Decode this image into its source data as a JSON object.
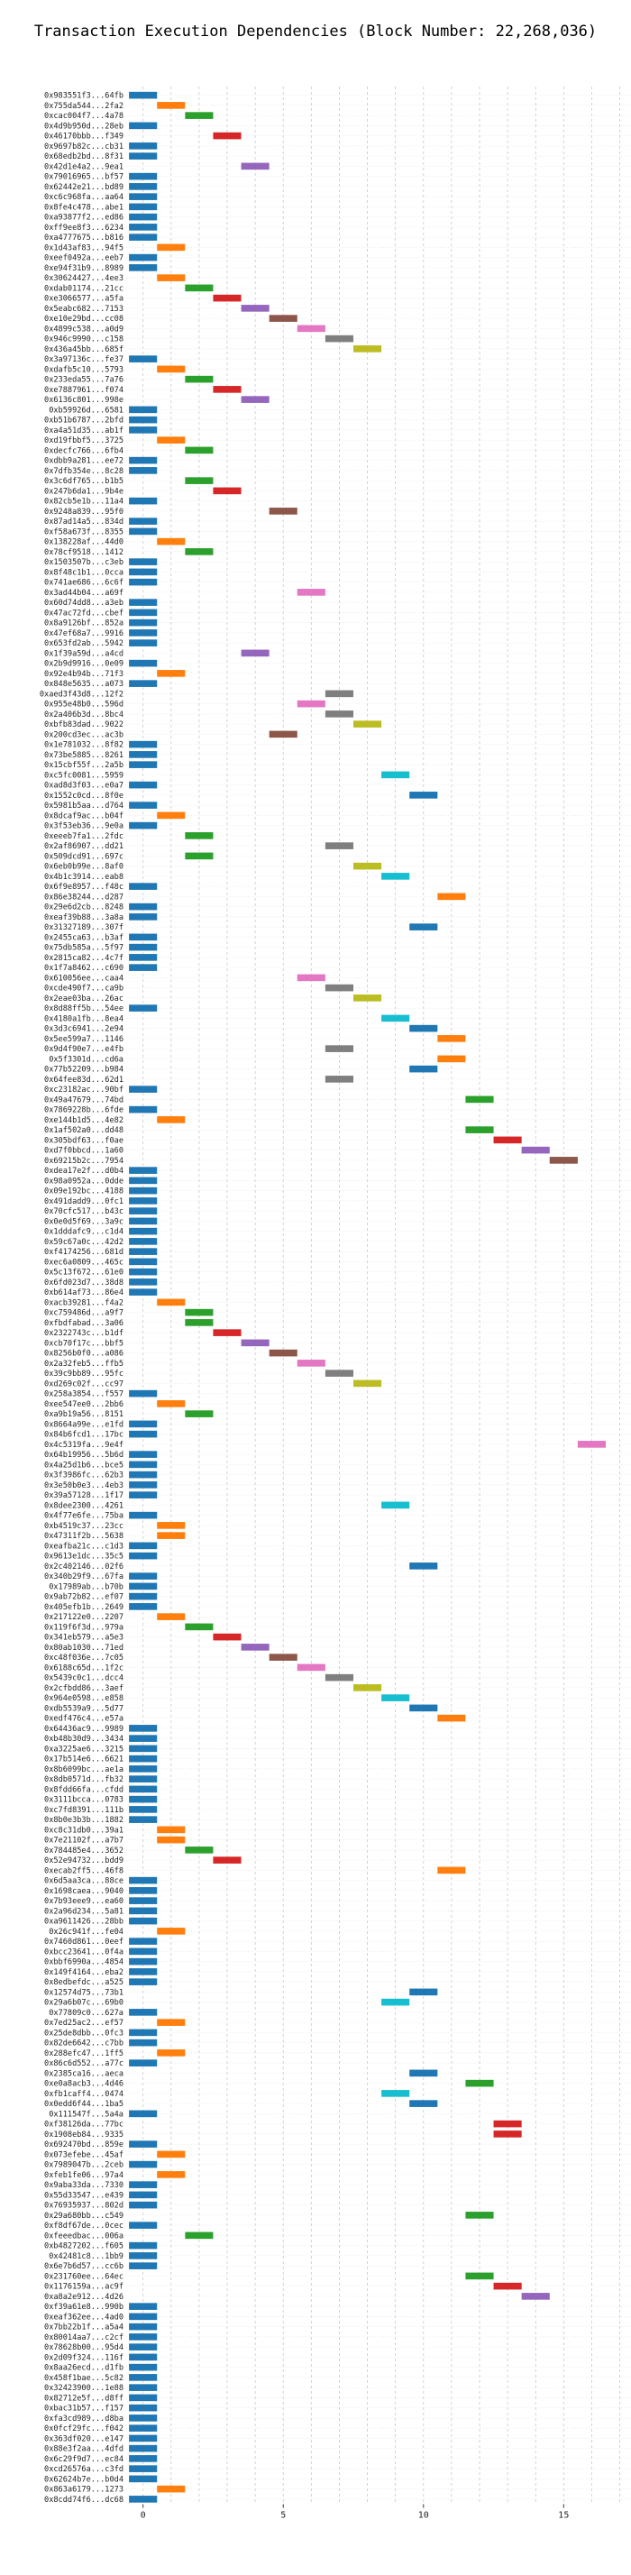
{
  "chart_data": {
    "type": "bar",
    "orientation": "horizontal-gantt",
    "title": "Transaction Execution Dependencies (Block Number: 22,268,036)",
    "xlabel": "",
    "ylabel": "",
    "xlim": [
      -0.6,
      17.4
    ],
    "xticks": [
      0,
      5,
      10,
      15
    ],
    "grid": true,
    "colors": [
      "#1f77b4",
      "#ff7f0e",
      "#2ca02c",
      "#d62728",
      "#9467bd",
      "#8c564b",
      "#e377c2",
      "#7f7f7f",
      "#bcbd22",
      "#17becf"
    ],
    "transactions": [
      {
        "label": "0x983551f3...64fb",
        "start": 0
      },
      {
        "label": "0x755da544...2fa2",
        "start": 1
      },
      {
        "label": "0xcac004f7...4a78",
        "start": 2
      },
      {
        "label": "0x4d9b950d...28eb",
        "start": 0
      },
      {
        "label": "0x46170bbb...f349",
        "start": 3
      },
      {
        "label": "0x9697b82c...cb31",
        "start": 0
      },
      {
        "label": "0x68edb2bd...8f31",
        "start": 0
      },
      {
        "label": "0x42d1e4a2...9ea1",
        "start": 4
      },
      {
        "label": "0x79016965...bf57",
        "start": 0
      },
      {
        "label": "0x62442e21...bd89",
        "start": 0
      },
      {
        "label": "0xc6c968fa...aa64",
        "start": 0
      },
      {
        "label": "0x8fe4c478...abe1",
        "start": 0
      },
      {
        "label": "0xa93877f2...ed86",
        "start": 0
      },
      {
        "label": "0xff9ee8f3...6234",
        "start": 0
      },
      {
        "label": "0xa4777675...b816",
        "start": 0
      },
      {
        "label": "0x1d43af83...94f5",
        "start": 1
      },
      {
        "label": "0xeef0492a...eeb7",
        "start": 0
      },
      {
        "label": "0xe94f31b9...8989",
        "start": 0
      },
      {
        "label": "0x30624427...4ee3",
        "start": 1
      },
      {
        "label": "0xdab01174...21cc",
        "start": 2
      },
      {
        "label": "0xe3066577...a5fa",
        "start": 3
      },
      {
        "label": "0x5eabc682...7153",
        "start": 4
      },
      {
        "label": "0xe10e29bd...cc08",
        "start": 5
      },
      {
        "label": "0x4899c538...a0d9",
        "start": 6
      },
      {
        "label": "0x946c9990...c158",
        "start": 7
      },
      {
        "label": "0x436a45bb...685f",
        "start": 8
      },
      {
        "label": "0x3a97136c...fe37",
        "start": 0
      },
      {
        "label": "0xdafb5c10...5793",
        "start": 1
      },
      {
        "label": "0x233eda55...7a76",
        "start": 2
      },
      {
        "label": "0xe7887961...f074",
        "start": 3
      },
      {
        "label": "0x6136c801...998e",
        "start": 4
      },
      {
        "label": "0xb59926d...6581",
        "start": 0
      },
      {
        "label": "0xb51b6787...2bfd",
        "start": 0
      },
      {
        "label": "0xa4a51d35...ab1f",
        "start": 0
      },
      {
        "label": "0xd19fbbf5...3725",
        "start": 1
      },
      {
        "label": "0xdecfc766...6fb4",
        "start": 2
      },
      {
        "label": "0xdbb9a281...ee72",
        "start": 0
      },
      {
        "label": "0x7dfb354e...8c28",
        "start": 0
      },
      {
        "label": "0x3c6df765...b1b5",
        "start": 2
      },
      {
        "label": "0x247b6da1...9b4e",
        "start": 3
      },
      {
        "label": "0x82cb5e1b...11a4",
        "start": 0
      },
      {
        "label": "0x9248a839...95f0",
        "start": 5
      },
      {
        "label": "0x87ad14a5...834d",
        "start": 0
      },
      {
        "label": "0xf58a673f...8355",
        "start": 0
      },
      {
        "label": "0x138228af...44d0",
        "start": 1
      },
      {
        "label": "0x78cf9518...1412",
        "start": 2
      },
      {
        "label": "0x1503507b...c3eb",
        "start": 0
      },
      {
        "label": "0x8f48c1b1...0cca",
        "start": 0
      },
      {
        "label": "0x741ae686...6c6f",
        "start": 0
      },
      {
        "label": "0x3ad44b04...a69f",
        "start": 6
      },
      {
        "label": "0x60d74dd8...a3eb",
        "start": 0
      },
      {
        "label": "0x47ac72fd...cbef",
        "start": 0
      },
      {
        "label": "0x8a9126bf...852a",
        "start": 0
      },
      {
        "label": "0x47ef68a7...9916",
        "start": 0
      },
      {
        "label": "0x653fd2ab...5942",
        "start": 0
      },
      {
        "label": "0x1f39a59d...a4cd",
        "start": 4
      },
      {
        "label": "0x2b9d9916...0e09",
        "start": 0
      },
      {
        "label": "0x92e4b94b...71f3",
        "start": 1
      },
      {
        "label": "0x848e5635...a073",
        "start": 0
      },
      {
        "label": "0xaed3f43d8...12f2",
        "start": 7
      },
      {
        "label": "0x955e48b0...596d",
        "start": 6
      },
      {
        "label": "0x2a406b3d...8bc4",
        "start": 7
      },
      {
        "label": "0xbfb83dad...9022",
        "start": 8
      },
      {
        "label": "0x200cd3ec...ac3b",
        "start": 5
      },
      {
        "label": "0x1e781032...8f82",
        "start": 0
      },
      {
        "label": "0x73be5885...8261",
        "start": 0
      },
      {
        "label": "0x15cbf55f...2a5b",
        "start": 0
      },
      {
        "label": "0xc5fc0081...5959",
        "start": 9
      },
      {
        "label": "0xad8d3f03...e0a7",
        "start": 0
      },
      {
        "label": "0x1552c0cd...8f0e",
        "start": 10
      },
      {
        "label": "0x5981b5aa...d764",
        "start": 0
      },
      {
        "label": "0x8dcaf9ac...b04f",
        "start": 1
      },
      {
        "label": "0x3f53eb36...9e0a",
        "start": 0
      },
      {
        "label": "0xeeeb7fa1...2fdc",
        "start": 2
      },
      {
        "label": "0x2af86907...dd21",
        "start": 7
      },
      {
        "label": "0x509dcd91...697c",
        "start": 2
      },
      {
        "label": "0x6eb0b99e...8af0",
        "start": 8
      },
      {
        "label": "0x4b1c3914...eab8",
        "start": 9
      },
      {
        "label": "0x6f9e8957...f48c",
        "start": 0
      },
      {
        "label": "0x86e38244...d287",
        "start": 11
      },
      {
        "label": "0x29e6d2cb...8248",
        "start": 0
      },
      {
        "label": "0xeaf39b88...3a8a",
        "start": 0
      },
      {
        "label": "0x31327189...307f",
        "start": 10
      },
      {
        "label": "0x2455ca63...b3af",
        "start": 0
      },
      {
        "label": "0x75db585a...5f97",
        "start": 0
      },
      {
        "label": "0x2815ca82...4c7f",
        "start": 0
      },
      {
        "label": "0x1f7a8462...c690",
        "start": 0
      },
      {
        "label": "0x610056ee...caa4",
        "start": 6
      },
      {
        "label": "0xcde490f7...ca9b",
        "start": 7
      },
      {
        "label": "0x2eae03ba...26ac",
        "start": 8
      },
      {
        "label": "0x8d88ff5b...54ee",
        "start": 0
      },
      {
        "label": "0x4180a1fb...8ea4",
        "start": 9
      },
      {
        "label": "0x3d3c6941...2e94",
        "start": 10
      },
      {
        "label": "0x5ee599a7...1146",
        "start": 11
      },
      {
        "label": "0x9d4f90e7...e4fb",
        "start": 7
      },
      {
        "label": "0x5f3301d...cd6a",
        "start": 11
      },
      {
        "label": "0x77b52209...b984",
        "start": 10
      },
      {
        "label": "0x64fee83d...62d1",
        "start": 7
      },
      {
        "label": "0xc23182ac...90bf",
        "start": 0
      },
      {
        "label": "0x49a47679...74bd",
        "start": 12
      },
      {
        "label": "0x7869228b...6fde",
        "start": 0
      },
      {
        "label": "0xe144b1d5...4e82",
        "start": 1
      },
      {
        "label": "0x1af502a0...dd48",
        "start": 12
      },
      {
        "label": "0x305bdf63...f0ae",
        "start": 13
      },
      {
        "label": "0xd7f0bbcd...1a60",
        "start": 14
      },
      {
        "label": "0x69215b2c...7954",
        "start": 15
      },
      {
        "label": "0xdea17e2f...d0b4",
        "start": 0
      },
      {
        "label": "0x98a0952a...0dde",
        "start": 0
      },
      {
        "label": "0x09e192bc...4188",
        "start": 0
      },
      {
        "label": "0x491dadd9...0fc1",
        "start": 0
      },
      {
        "label": "0x70cfc517...b43c",
        "start": 0
      },
      {
        "label": "0x0e0d5f69...3a9c",
        "start": 0
      },
      {
        "label": "0x1dddafc9...c1d4",
        "start": 0
      },
      {
        "label": "0x59c67a0c...42d2",
        "start": 0
      },
      {
        "label": "0xf4174256...681d",
        "start": 0
      },
      {
        "label": "0xec6a0809...465c",
        "start": 0
      },
      {
        "label": "0x5c13f672...61e0",
        "start": 0
      },
      {
        "label": "0x6fd023d7...38d8",
        "start": 0
      },
      {
        "label": "0xb614af73...86e4",
        "start": 0
      },
      {
        "label": "0xacb39281...f4a2",
        "start": 1
      },
      {
        "label": "0xc759486d...a9f7",
        "start": 2
      },
      {
        "label": "0xfbdfabad...3a06",
        "start": 2
      },
      {
        "label": "0x2322743c...b1df",
        "start": 3
      },
      {
        "label": "0xcb70f17c...bbf5",
        "start": 4
      },
      {
        "label": "0x8256b0f0...a086",
        "start": 5
      },
      {
        "label": "0x2a32feb5...ffb5",
        "start": 6
      },
      {
        "label": "0x39c9bb89...95fc",
        "start": 7
      },
      {
        "label": "0xd269c02f...cc97",
        "start": 8
      },
      {
        "label": "0x258a3854...f557",
        "start": 0
      },
      {
        "label": "0xee547ee0...2bb6",
        "start": 1
      },
      {
        "label": "0xa9b19a56...8151",
        "start": 2
      },
      {
        "label": "0x8664a99e...e1fd",
        "start": 0
      },
      {
        "label": "0x84b6fcd1...17bc",
        "start": 0
      },
      {
        "label": "0x4c5319fa...9e4f",
        "start": 16
      },
      {
        "label": "0x64b19956...5b6d",
        "start": 0
      },
      {
        "label": "0x4a25d1b6...bce5",
        "start": 0
      },
      {
        "label": "0x3f3986fc...62b3",
        "start": 0
      },
      {
        "label": "0x3e50b0e3...4eb3",
        "start": 0
      },
      {
        "label": "0x39a57128...1f17",
        "start": 0
      },
      {
        "label": "0x8dee2300...4261",
        "start": 9
      },
      {
        "label": "0x4f77e6fe...75ba",
        "start": 0
      },
      {
        "label": "0xb4519c37...23cc",
        "start": 1
      },
      {
        "label": "0x47311f2b...5638",
        "start": 1
      },
      {
        "label": "0xeafba21c...c1d3",
        "start": 0
      },
      {
        "label": "0x9613e1dc...35c5",
        "start": 0
      },
      {
        "label": "0x2c402146...02f6",
        "start": 10
      },
      {
        "label": "0x340b29f9...67fa",
        "start": 0
      },
      {
        "label": "0x17989ab...b70b",
        "start": 0
      },
      {
        "label": "0x9ab72b82...ef07",
        "start": 0
      },
      {
        "label": "0x405efb1b...2649",
        "start": 0
      },
      {
        "label": "0x217122e0...2207",
        "start": 1
      },
      {
        "label": "0x119f6f3d...979a",
        "start": 2
      },
      {
        "label": "0x341eb579...a5e3",
        "start": 3
      },
      {
        "label": "0x80ab1030...71ed",
        "start": 4
      },
      {
        "label": "0xc48f036e...7c05",
        "start": 5
      },
      {
        "label": "0x6188c65d...1f2c",
        "start": 6
      },
      {
        "label": "0x5439c0c1...dcc4",
        "start": 7
      },
      {
        "label": "0x2cfbdd86...3aef",
        "start": 8
      },
      {
        "label": "0x964e0598...e858",
        "start": 9
      },
      {
        "label": "0xdb5539a9...5d77",
        "start": 10
      },
      {
        "label": "0xedf476c4...e57a",
        "start": 11
      },
      {
        "label": "0x64436ac9...9989",
        "start": 0
      },
      {
        "label": "0xb48b30d9...3434",
        "start": 0
      },
      {
        "label": "0xa3225ae6...3215",
        "start": 0
      },
      {
        "label": "0x17b514e6...6621",
        "start": 0
      },
      {
        "label": "0x8b6099bc...ae1a",
        "start": 0
      },
      {
        "label": "0x8db0571d...fb32",
        "start": 0
      },
      {
        "label": "0x8fdd66fa...cfdd",
        "start": 0
      },
      {
        "label": "0x3111bcca...0783",
        "start": 0
      },
      {
        "label": "0xc7fd8391...111b",
        "start": 0
      },
      {
        "label": "0x8b0e3b3b...1882",
        "start": 0
      },
      {
        "label": "0xc8c31db0...39a1",
        "start": 1
      },
      {
        "label": "0x7e21102f...a7b7",
        "start": 1
      },
      {
        "label": "0x784485e4...3652",
        "start": 2
      },
      {
        "label": "0x52e94732...bdd9",
        "start": 3
      },
      {
        "label": "0xecab2ff5...46f8",
        "start": 11
      },
      {
        "label": "0x6d5aa3ca...88ce",
        "start": 0
      },
      {
        "label": "0x1698caea...9040",
        "start": 0
      },
      {
        "label": "0x7b93eee9...ea60",
        "start": 0
      },
      {
        "label": "0x2a96d234...5a81",
        "start": 0
      },
      {
        "label": "0xa9611426...28bb",
        "start": 0
      },
      {
        "label": "0x26c941f...fe04",
        "start": 1
      },
      {
        "label": "0x7460d861...0eef",
        "start": 0
      },
      {
        "label": "0xbcc23641...0f4a",
        "start": 0
      },
      {
        "label": "0xbbf6990a...4854",
        "start": 0
      },
      {
        "label": "0x149f4164...eba2",
        "start": 0
      },
      {
        "label": "0x8edbefdc...a525",
        "start": 0
      },
      {
        "label": "0x12574d75...73b1",
        "start": 10
      },
      {
        "label": "0x29a6b07c...69b0",
        "start": 9
      },
      {
        "label": "0x77809c0...627a",
        "start": 0
      },
      {
        "label": "0x7ed25ac2...ef57",
        "start": 1
      },
      {
        "label": "0x25de8dbb...0fc3",
        "start": 0
      },
      {
        "label": "0x82de6642...c7bb",
        "start": 0
      },
      {
        "label": "0x288efc47...1ff5",
        "start": 1
      },
      {
        "label": "0x86c6d552...a77c",
        "start": 0
      },
      {
        "label": "0x2385ca16...aeca",
        "start": 10
      },
      {
        "label": "0xe0a8acb3...4d46",
        "start": 12
      },
      {
        "label": "0xfb1caff4...0474",
        "start": 9
      },
      {
        "label": "0x0edd6f44...1ba5",
        "start": 10
      },
      {
        "label": "0x111547f...5a4a",
        "start": 0
      },
      {
        "label": "0xf38126da...77bc",
        "start": 13
      },
      {
        "label": "0x1908eb84...9335",
        "start": 13
      },
      {
        "label": "0x692470bd...859e",
        "start": 0
      },
      {
        "label": "0x073efebe...45af",
        "start": 1
      },
      {
        "label": "0x7989047b...2ceb",
        "start": 0
      },
      {
        "label": "0xfeb1fe06...97a4",
        "start": 1
      },
      {
        "label": "0x9aba33da...7330",
        "start": 0
      },
      {
        "label": "0x55d33547...e439",
        "start": 0
      },
      {
        "label": "0x76935937...802d",
        "start": 0
      },
      {
        "label": "0x29a680bb...c549",
        "start": 12
      },
      {
        "label": "0xf8df67de...0cec",
        "start": 0
      },
      {
        "label": "0xfeeedbac...006a",
        "start": 2
      },
      {
        "label": "0xb4827202...f605",
        "start": 0
      },
      {
        "label": "0x42481c8...1bb9",
        "start": 0
      },
      {
        "label": "0x6e7b6d57...cc6b",
        "start": 0
      },
      {
        "label": "0x231760ee...64ec",
        "start": 12
      },
      {
        "label": "0x1176159a...ac9f",
        "start": 13
      },
      {
        "label": "0xa8a2e912...4d26",
        "start": 14
      },
      {
        "label": "0xf39a61e8...990b",
        "start": 0
      },
      {
        "label": "0xeaf362ee...4ad0",
        "start": 0
      },
      {
        "label": "0x7bb22b1f...a5a4",
        "start": 0
      },
      {
        "label": "0x80014aa7...c2cf",
        "start": 0
      },
      {
        "label": "0x78628b00...95d4",
        "start": 0
      },
      {
        "label": "0x2d09f324...116f",
        "start": 0
      },
      {
        "label": "0x8aa26ecd...d1fb",
        "start": 0
      },
      {
        "label": "0x458f1bae...5c82",
        "start": 0
      },
      {
        "label": "0x32423900...1e88",
        "start": 0
      },
      {
        "label": "0x82712e5f...d8ff",
        "start": 0
      },
      {
        "label": "0xbac31b57...f157",
        "start": 0
      },
      {
        "label": "0xfa3cd989...d8ba",
        "start": 0
      },
      {
        "label": "0x0fcf29fc...f042",
        "start": 0
      },
      {
        "label": "0x363df020...e147",
        "start": 0
      },
      {
        "label": "0x88e3f2aa...4dfd",
        "start": 0
      },
      {
        "label": "0x6c29f9d7...ec84",
        "start": 0
      },
      {
        "label": "0xcd26576a...c3fd",
        "start": 0
      },
      {
        "label": "0x62624b7e...b0d4",
        "start": 0
      },
      {
        "label": "0x863a6179...1273",
        "start": 1
      },
      {
        "label": "0x8cdd74f6...dc68",
        "start": 0
      }
    ]
  }
}
